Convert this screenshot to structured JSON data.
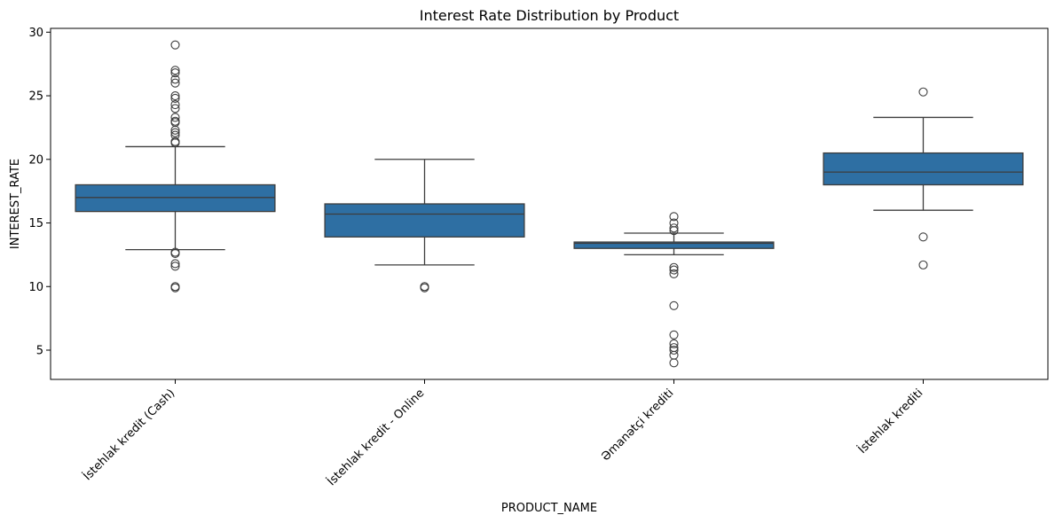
{
  "chart_data": {
    "type": "boxplot",
    "title": "Interest Rate Distribution by Product",
    "xlabel": "PRODUCT_NAME",
    "ylabel": "INTEREST_RATE",
    "ylim": [
      2.7,
      30.3
    ],
    "yticks": [
      5,
      10,
      15,
      20,
      25,
      30
    ],
    "grid": false,
    "box_color": "#2e6fa3",
    "line_color": "#3d3d3d",
    "categories": [
      "İstehlak kredit (Cash)",
      "İstehlak kredit - Online",
      "Əmanətçi krediti",
      "İstehlak krediti"
    ],
    "boxes": [
      {
        "category": "İstehlak kredit (Cash)",
        "whisker_low": 12.9,
        "q1": 15.9,
        "median": 17.0,
        "q3": 18.0,
        "whisker_high": 21.0,
        "outliers": [
          29.0,
          27.0,
          26.8,
          26.3,
          26.0,
          25.0,
          24.8,
          24.3,
          24.0,
          23.3,
          23.0,
          22.9,
          22.3,
          22.1,
          21.9,
          21.4,
          21.3,
          12.7,
          12.6,
          11.8,
          11.6,
          10.0,
          9.9
        ]
      },
      {
        "category": "İstehlak kredit - Online",
        "whisker_low": 11.7,
        "q1": 13.9,
        "median": 15.7,
        "q3": 16.5,
        "whisker_high": 20.0,
        "outliers": [
          10.0,
          9.9
        ]
      },
      {
        "category": "Əmanətçi krediti",
        "whisker_low": 12.5,
        "q1": 13.0,
        "median": 13.4,
        "q3": 13.5,
        "whisker_high": 14.2,
        "outliers": [
          15.5,
          15.0,
          14.6,
          14.4,
          11.5,
          11.3,
          11.0,
          8.5,
          6.2,
          5.5,
          5.2,
          5.0,
          4.6,
          4.0
        ]
      },
      {
        "category": "İstehlak krediti",
        "whisker_low": 16.0,
        "q1": 18.0,
        "median": 19.0,
        "q3": 20.5,
        "whisker_high": 23.3,
        "outliers": [
          25.3,
          13.9,
          11.7
        ]
      }
    ]
  }
}
